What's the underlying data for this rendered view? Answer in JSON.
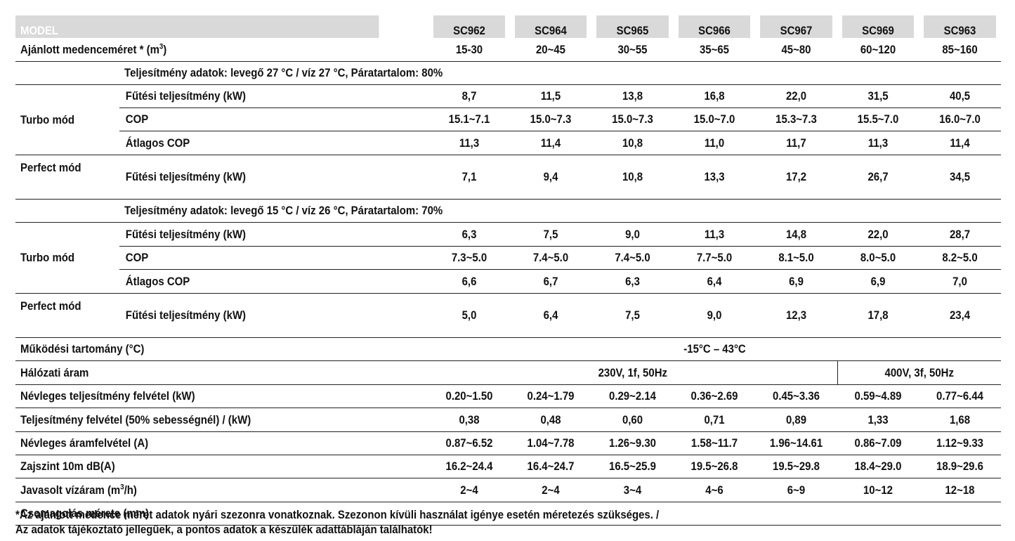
{
  "header": {
    "label": "MODEL",
    "models": [
      "SC962",
      "SC964",
      "SC965",
      "SC966",
      "SC967",
      "SC969",
      "SC963"
    ]
  },
  "pool": {
    "label_prefix": "Ajánlott medenceméret * (m",
    "label_sup": "3",
    "label_suffix": ")",
    "values": [
      "15-30",
      "20~45",
      "30~55",
      "35~65",
      "45~80",
      "60~120",
      "85~160"
    ]
  },
  "section1": {
    "condition": "Teljesítmény adatok: levegő 27 °C / víz 27 °C, Páratartalom: 80%",
    "turbo_label": "Turbo mód",
    "perfect_label": "Perfect mód",
    "turbo": [
      {
        "label": "Fűtési teljesítmény (kW)",
        "values": [
          "8,7",
          "11,5",
          "13,8",
          "16,8",
          "22,0",
          "31,5",
          "40,5"
        ]
      },
      {
        "label": "COP",
        "values": [
          "15.1~7.1",
          "15.0~7.3",
          "15.0~7.3",
          "15.0~7.0",
          "15.3~7.3",
          "15.5~7.0",
          "16.0~7.0"
        ]
      },
      {
        "label": "Átlagos COP",
        "values": [
          "11,3",
          "11,4",
          "10,8",
          "11,0",
          "11,7",
          "11,3",
          "11,4"
        ]
      }
    ],
    "perfect": {
      "label": "Fűtési teljesítmény (kW)",
      "values": [
        "7,1",
        "9,4",
        "10,8",
        "13,3",
        "17,2",
        "26,7",
        "34,5"
      ]
    }
  },
  "section2": {
    "condition": "Teljesítmény adatok: levegő 15 °C / víz 26 °C, Páratartalom: 70%",
    "turbo_label": "Turbo mód",
    "perfect_label": "Perfect mód",
    "turbo": [
      {
        "label": "Fűtési teljesítmény (kW)",
        "values": [
          "6,3",
          "7,5",
          "9,0",
          "11,3",
          "14,8",
          "22,0",
          "28,7"
        ]
      },
      {
        "label": "COP",
        "values": [
          "7.3~5.0",
          "7.4~5.0",
          "7.4~5.0",
          "7.7~5.0",
          "8.1~5.0",
          "8.0~5.0",
          "8.2~5.0"
        ]
      },
      {
        "label": "Átlagos COP",
        "values": [
          "6,6",
          "6,7",
          "6,3",
          "6,4",
          "6,9",
          "6,9",
          "7,0"
        ]
      }
    ],
    "perfect": {
      "label": "Fűtési teljesítmény (kW)",
      "values": [
        "5,0",
        "6,4",
        "7,5",
        "9,0",
        "12,3",
        "17,8",
        "23,4"
      ]
    }
  },
  "operating_range": {
    "label": "Működési tartomány (°C)",
    "value": "-15°C – 43°C"
  },
  "power_supply": {
    "label": "Hálózati áram",
    "value_single": "230V, 1f, 50Hz",
    "value_three": "400V, 3f, 50Hz"
  },
  "specs": [
    {
      "label": "Névleges teljesítmény felvétel (kW)",
      "values": [
        "0.20~1.50",
        "0.24~1.79",
        "0.29~2.14",
        "0.36~2.69",
        "0.45~3.36",
        "0.59~4.89",
        "0.77~6.44"
      ]
    },
    {
      "label": "Teljesítmény felvétel (50% sebességnél) / (kW)",
      "values": [
        "0,38",
        "0,48",
        "0,60",
        "0,71",
        "0,89",
        "1,33",
        "1,68"
      ]
    },
    {
      "label": "Névleges áramfelvétel (A)",
      "values": [
        "0.87~6.52",
        "1.04~7.78",
        "1.26~9.30",
        "1.58~11.7",
        "1.96~14.61",
        "0.86~7.09",
        "1.12~9.33"
      ]
    },
    {
      "label": "Zajszint 10m dB(A)",
      "values": [
        "16.2~24.4",
        "16.4~24.7",
        "16.5~25.9",
        "19.5~26.8",
        "19.5~29.8",
        "18.4~29.0",
        "18.9~29.6"
      ]
    }
  ],
  "water_flow": {
    "label_prefix": "Javasolt vízáram (m",
    "label_sup": "3",
    "label_suffix": "/h)",
    "values": [
      "2~4",
      "2~4",
      "3~4",
      "4~6",
      "6~9",
      "10~12",
      "12~18"
    ]
  },
  "package": {
    "label": "Csomagolás mérete (mm)"
  },
  "footnote": {
    "line1": "*Az ajánlott medence méret adatok nyári szezonra vonatkoznak. Szezonon kívüli használat igénye esetén méretezés szükséges. /",
    "line2": "Az adatok tájékoztató jellegűek, a pontos adatok a készülék adattábláján találhatók!"
  }
}
